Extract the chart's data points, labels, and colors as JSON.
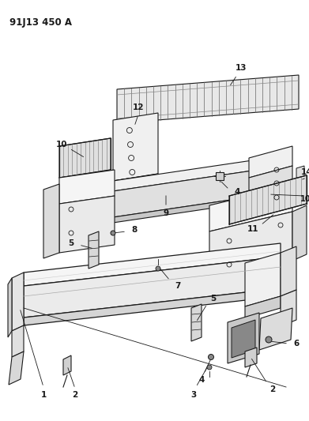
{
  "title": "91J13 450 A",
  "background_color": "#ffffff",
  "line_color": "#1a1a1a",
  "figsize": [
    3.91,
    5.33
  ],
  "dpi": 100
}
